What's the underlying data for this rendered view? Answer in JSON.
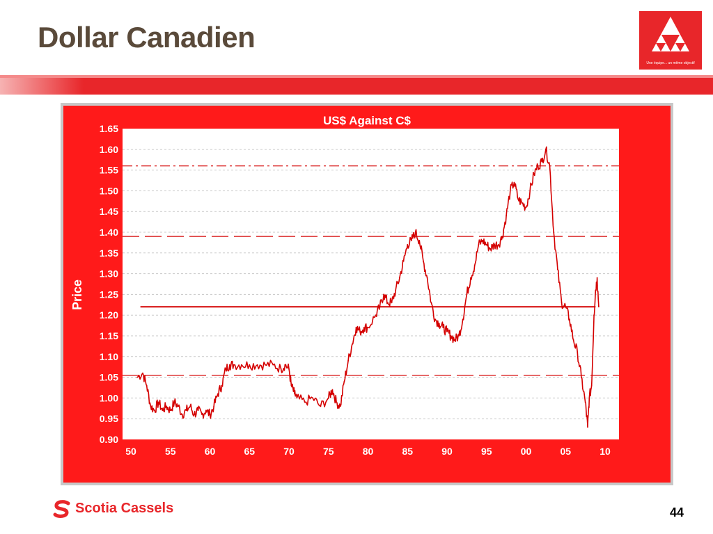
{
  "slide": {
    "title": "Dollar Canadien",
    "page_number": "44",
    "brand": "Scotia Cassels",
    "logo_tagline": "Une équipe... un même objectif",
    "accent_color": "#e8262a",
    "series_color": "#d40000"
  },
  "chart_data": {
    "type": "line",
    "title": "US$ Against C$",
    "xlabel": "",
    "ylabel": "Price",
    "ylim": [
      0.9,
      1.65
    ],
    "y_ticks": [
      "0.90",
      "0.95",
      "1.00",
      "1.05",
      "1.10",
      "1.15",
      "1.20",
      "1.25",
      "1.30",
      "1.35",
      "1.40",
      "1.45",
      "1.50",
      "1.55",
      "1.60",
      "1.65"
    ],
    "x_ticks": [
      "50",
      "55",
      "60",
      "65",
      "70",
      "75",
      "80",
      "85",
      "90",
      "95",
      "00",
      "05",
      "10"
    ],
    "xlim": [
      1950,
      2010
    ],
    "grid": true,
    "reference_lines": [
      {
        "value": 1.56,
        "style": "dash-dot"
      },
      {
        "value": 1.39,
        "style": "long-dash"
      },
      {
        "value": 1.22,
        "style": "solid"
      },
      {
        "value": 1.055,
        "style": "long-dash"
      }
    ],
    "series": [
      {
        "x": [
          1950.8,
          1951.5,
          1952,
          1952.5,
          1953,
          1953.5,
          1954,
          1954.5,
          1955,
          1955.5,
          1956,
          1956.5,
          1957,
          1957.5,
          1958,
          1958.5,
          1959,
          1959.5,
          1960,
          1960.5,
          1961,
          1961.5,
          1962,
          1962.5,
          1963,
          1964,
          1965,
          1966,
          1967,
          1968,
          1969,
          1969.5,
          1970,
          1970.3,
          1970.7,
          1971,
          1972,
          1973,
          1974,
          1975,
          1975.5,
          1976,
          1976.5,
          1977,
          1977.5,
          1978,
          1978.5,
          1979,
          1979.5,
          1980,
          1981,
          1981.5,
          1982,
          1982.5,
          1983,
          1983.5,
          1984,
          1984.5,
          1985,
          1985.5,
          1986,
          1986.5,
          1987,
          1987.5,
          1988,
          1988.5,
          1989,
          1989.5,
          1990,
          1990.5,
          1991,
          1991.5,
          1992,
          1992.5,
          1993,
          1993.5,
          1994,
          1994.5,
          1995,
          1995.5,
          1996,
          1996.5,
          1997,
          1997.5,
          1998,
          1998.5,
          1999,
          1999.5,
          2000,
          2000.5,
          2001,
          2001.5,
          2002,
          2002.5,
          2003,
          2003.5,
          2004,
          2004.5,
          2005,
          2005.5,
          2006,
          2006.5,
          2007,
          2007.5,
          2007.8,
          2008,
          2008.3,
          2008.6,
          2008.8,
          2009,
          2009.2
        ],
        "values": [
          1.05,
          1.06,
          1.03,
          0.98,
          0.97,
          0.99,
          0.97,
          0.98,
          0.97,
          0.99,
          0.98,
          0.96,
          0.97,
          0.98,
          0.96,
          0.97,
          0.96,
          0.97,
          0.96,
          0.98,
          1.01,
          1.03,
          1.07,
          1.08,
          1.08,
          1.08,
          1.08,
          1.08,
          1.08,
          1.08,
          1.07,
          1.08,
          1.07,
          1.03,
          1.01,
          1.0,
          0.99,
          1.0,
          0.98,
          1.0,
          1.02,
          0.99,
          0.98,
          1.04,
          1.09,
          1.13,
          1.17,
          1.16,
          1.17,
          1.17,
          1.2,
          1.22,
          1.25,
          1.23,
          1.23,
          1.26,
          1.29,
          1.33,
          1.37,
          1.38,
          1.4,
          1.38,
          1.33,
          1.29,
          1.23,
          1.19,
          1.18,
          1.17,
          1.16,
          1.15,
          1.14,
          1.15,
          1.19,
          1.25,
          1.29,
          1.32,
          1.37,
          1.38,
          1.37,
          1.36,
          1.37,
          1.37,
          1.39,
          1.44,
          1.5,
          1.52,
          1.48,
          1.47,
          1.46,
          1.5,
          1.54,
          1.56,
          1.57,
          1.6,
          1.56,
          1.4,
          1.31,
          1.23,
          1.22,
          1.19,
          1.14,
          1.11,
          1.05,
          0.99,
          0.93,
          1.0,
          1.03,
          1.2,
          1.26,
          1.29,
          1.22
        ]
      }
    ]
  }
}
